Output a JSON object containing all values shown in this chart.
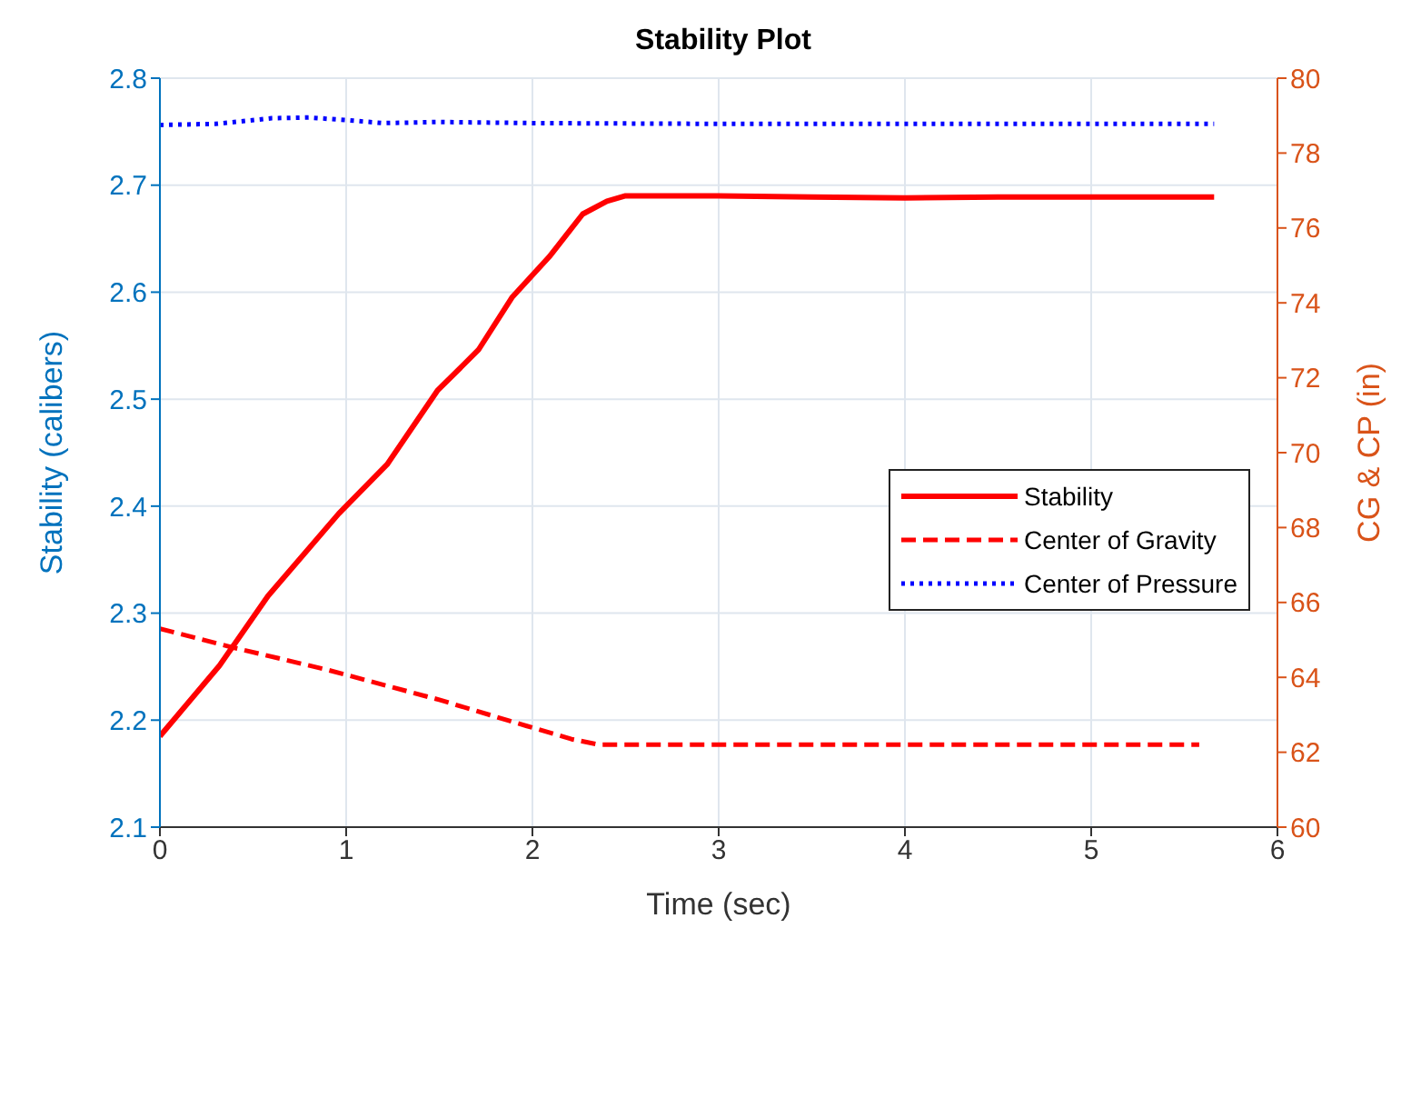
{
  "chart_data": {
    "type": "line",
    "title": "Stability Plot",
    "xlabel": "Time (sec)",
    "ylabel": "Stability (calibers)",
    "y2label": "CG & CP (in)",
    "xlim": [
      0,
      6
    ],
    "xticks": [
      0,
      1,
      2,
      3,
      4,
      5,
      6
    ],
    "ylim": [
      2.1,
      2.8
    ],
    "yticks": [
      2.1,
      2.2,
      2.3,
      2.4,
      2.5,
      2.6,
      2.7,
      2.8
    ],
    "y2lim": [
      60,
      80
    ],
    "y2ticks": [
      60,
      62,
      64,
      66,
      68,
      70,
      72,
      74,
      76,
      78,
      80
    ],
    "grid": true,
    "legend": "right",
    "marker": "none",
    "series": [
      {
        "name": "Stability",
        "color": "#ff0000",
        "line_style": "solid",
        "x": [
          0,
          0.32,
          0.58,
          0.96,
          1.22,
          1.49,
          1.71,
          1.89,
          2.09,
          2.27,
          2.4,
          2.5,
          3,
          3.5,
          4,
          4.5,
          5,
          5.66
        ],
        "values": [
          2.185,
          2.251,
          2.316,
          2.393,
          2.439,
          2.508,
          2.546,
          2.595,
          2.633,
          2.673,
          2.685,
          2.69,
          2.69,
          2.689,
          2.688,
          2.689,
          2.689,
          2.689
        ]
      },
      {
        "name": "Center of Gravity",
        "color": "#ff0000",
        "line_style": "dashed",
        "axis": "y2",
        "x": [
          0,
          0.39,
          0.9,
          1.5,
          1.97,
          2.21,
          2.36,
          3,
          4,
          5,
          5.58
        ],
        "values": [
          65.3,
          64.8,
          64.2,
          63.4,
          62.7,
          62.35,
          62.2,
          62.2,
          62.2,
          62.2,
          62.2
        ]
      },
      {
        "name": "Center of Pressure",
        "color": "#0000ff",
        "line_style": "dotted",
        "axis": "y2",
        "x": [
          0,
          0.3,
          0.6,
          0.8,
          1.0,
          1.2,
          1.5,
          2,
          3,
          4,
          5,
          5.66
        ],
        "values": [
          78.75,
          78.78,
          78.93,
          78.95,
          78.88,
          78.8,
          78.83,
          78.8,
          78.78,
          78.78,
          78.78,
          78.78
        ]
      }
    ]
  }
}
